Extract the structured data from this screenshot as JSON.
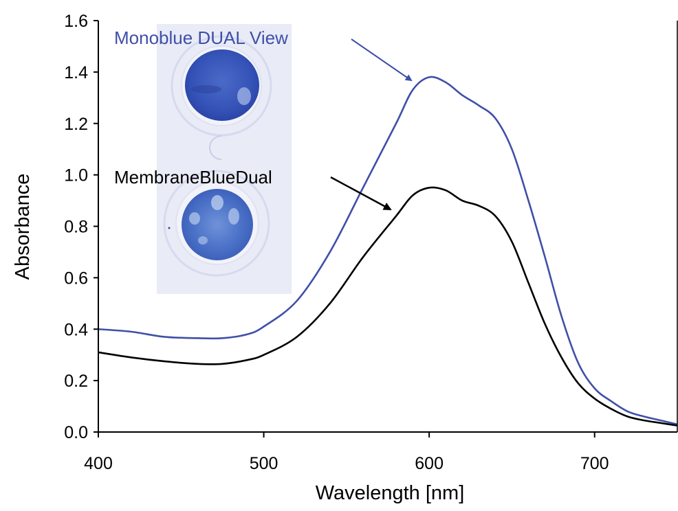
{
  "chart_data": {
    "type": "line",
    "title": "",
    "xlabel": "Wavelength [nm]",
    "ylabel": "Absorbance",
    "xlim": [
      400,
      750
    ],
    "ylim": [
      0,
      1.6
    ],
    "xticks": [
      400,
      500,
      600,
      700
    ],
    "xtick_labels": [
      "400",
      "500",
      "600",
      "700"
    ],
    "yticks": [
      0,
      0.2,
      0.4,
      0.6,
      0.8,
      1.0,
      1.2,
      1.4,
      1.6
    ],
    "ytick_labels": [
      "0.0",
      "0.2",
      "0.4",
      "0.6",
      "0.8",
      "1.0",
      "1.2",
      "1.4",
      "1.6"
    ],
    "grid": false,
    "series": [
      {
        "name": "Monoblue DUAL View",
        "color": "#3f4fa8",
        "x": [
          400,
          420,
          440,
          460,
          475,
          490,
          500,
          520,
          540,
          560,
          580,
          590,
          600,
          610,
          620,
          630,
          640,
          650,
          660,
          670,
          680,
          690,
          700,
          710,
          720,
          730,
          740,
          750
        ],
        "y": [
          0.4,
          0.39,
          0.37,
          0.365,
          0.365,
          0.38,
          0.41,
          0.51,
          0.7,
          0.95,
          1.2,
          1.33,
          1.38,
          1.36,
          1.31,
          1.27,
          1.22,
          1.1,
          0.9,
          0.68,
          0.45,
          0.27,
          0.17,
          0.12,
          0.08,
          0.06,
          0.045,
          0.03
        ]
      },
      {
        "name": "MembraneBlueDual",
        "color": "#000000",
        "x": [
          400,
          420,
          440,
          460,
          475,
          490,
          500,
          520,
          540,
          560,
          580,
          590,
          600,
          610,
          620,
          630,
          640,
          650,
          660,
          670,
          680,
          690,
          700,
          710,
          720,
          730,
          740,
          750
        ],
        "y": [
          0.31,
          0.29,
          0.275,
          0.265,
          0.265,
          0.28,
          0.3,
          0.37,
          0.5,
          0.68,
          0.84,
          0.92,
          0.95,
          0.94,
          0.9,
          0.88,
          0.84,
          0.74,
          0.58,
          0.42,
          0.29,
          0.19,
          0.13,
          0.09,
          0.06,
          0.045,
          0.035,
          0.025
        ]
      }
    ],
    "annotations": [
      {
        "text": "Monoblue DUAL View",
        "color": "#3f4fa8"
      },
      {
        "text": "MembraneBlueDual",
        "color": "#000000"
      }
    ]
  }
}
